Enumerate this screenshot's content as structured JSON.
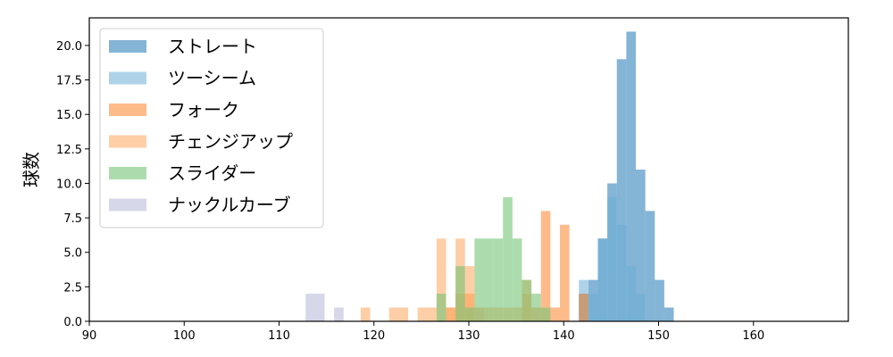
{
  "chart_data": {
    "type": "bar",
    "subtype": "histogram",
    "title": "",
    "xlabel": "",
    "ylabel": "球数",
    "xlim": [
      90,
      170
    ],
    "ylim": [
      0,
      22
    ],
    "xticks": [
      90,
      100,
      110,
      120,
      130,
      140,
      150,
      160
    ],
    "yticks": [
      0.0,
      2.5,
      5.0,
      7.5,
      10.0,
      12.5,
      15.0,
      17.5,
      20.0
    ],
    "ytick_labels": [
      "0.0",
      "2.5",
      "5.0",
      "7.5",
      "10.0",
      "12.5",
      "15.0",
      "17.5",
      "20.0"
    ],
    "grid": false,
    "legend_position": "upper-left",
    "series": [
      {
        "name": "ストレート",
        "color": "#1f77b4",
        "alpha": 0.55,
        "bins": [
          {
            "x0": 141.6,
            "x1": 142.6,
            "count": 2
          },
          {
            "x0": 142.6,
            "x1": 143.6,
            "count": 3
          },
          {
            "x0": 143.6,
            "x1": 144.6,
            "count": 6
          },
          {
            "x0": 144.6,
            "x1": 145.6,
            "count": 10
          },
          {
            "x0": 145.6,
            "x1": 146.6,
            "count": 19
          },
          {
            "x0": 146.6,
            "x1": 147.6,
            "count": 21
          },
          {
            "x0": 147.6,
            "x1": 148.6,
            "count": 11
          },
          {
            "x0": 148.6,
            "x1": 149.6,
            "count": 8
          },
          {
            "x0": 149.6,
            "x1": 150.6,
            "count": 3
          },
          {
            "x0": 150.6,
            "x1": 151.6,
            "count": 1
          }
        ]
      },
      {
        "name": "ツーシーム",
        "color": "#6baed6",
        "alpha": 0.55,
        "bins": [
          {
            "x0": 141.6,
            "x1": 142.6,
            "count": 3
          },
          {
            "x0": 142.6,
            "x1": 143.6,
            "count": 2
          },
          {
            "x0": 143.6,
            "x1": 144.6,
            "count": 6
          },
          {
            "x0": 144.6,
            "x1": 145.6,
            "count": 9
          },
          {
            "x0": 145.6,
            "x1": 146.6,
            "count": 7
          },
          {
            "x0": 146.6,
            "x1": 147.6,
            "count": 4
          },
          {
            "x0": 147.6,
            "x1": 148.6,
            "count": 2
          }
        ]
      },
      {
        "name": "フォーク",
        "color": "#fd8d3c",
        "alpha": 0.6,
        "bins": [
          {
            "x0": 127.6,
            "x1": 128.6,
            "count": 1
          },
          {
            "x0": 128.6,
            "x1": 129.6,
            "count": 2
          },
          {
            "x0": 129.6,
            "x1": 130.6,
            "count": 2
          },
          {
            "x0": 130.6,
            "x1": 131.6,
            "count": 1
          },
          {
            "x0": 135.6,
            "x1": 136.6,
            "count": 2
          },
          {
            "x0": 136.6,
            "x1": 137.6,
            "count": 1
          },
          {
            "x0": 137.6,
            "x1": 138.6,
            "count": 8
          },
          {
            "x0": 138.6,
            "x1": 139.6,
            "count": 1
          },
          {
            "x0": 139.6,
            "x1": 140.6,
            "count": 7
          },
          {
            "x0": 141.6,
            "x1": 142.6,
            "count": 2
          }
        ]
      },
      {
        "name": "チェンジアップ",
        "color": "#fdae6b",
        "alpha": 0.6,
        "bins": [
          {
            "x0": 118.6,
            "x1": 119.6,
            "count": 1
          },
          {
            "x0": 121.6,
            "x1": 122.6,
            "count": 1
          },
          {
            "x0": 122.6,
            "x1": 123.6,
            "count": 1
          },
          {
            "x0": 124.6,
            "x1": 125.6,
            "count": 1
          },
          {
            "x0": 125.6,
            "x1": 126.6,
            "count": 1
          },
          {
            "x0": 126.6,
            "x1": 127.6,
            "count": 6
          },
          {
            "x0": 127.6,
            "x1": 128.6,
            "count": 1
          },
          {
            "x0": 128.6,
            "x1": 129.6,
            "count": 6
          },
          {
            "x0": 129.6,
            "x1": 130.6,
            "count": 4
          },
          {
            "x0": 131.6,
            "x1": 132.6,
            "count": 1
          },
          {
            "x0": 132.6,
            "x1": 133.6,
            "count": 1
          },
          {
            "x0": 133.6,
            "x1": 134.6,
            "count": 1
          },
          {
            "x0": 134.6,
            "x1": 135.6,
            "count": 1
          },
          {
            "x0": 135.6,
            "x1": 136.6,
            "count": 3
          }
        ]
      },
      {
        "name": "スライダー",
        "color": "#74c476",
        "alpha": 0.6,
        "bins": [
          {
            "x0": 126.6,
            "x1": 127.6,
            "count": 2
          },
          {
            "x0": 128.6,
            "x1": 129.6,
            "count": 4
          },
          {
            "x0": 129.6,
            "x1": 130.6,
            "count": 1
          },
          {
            "x0": 130.6,
            "x1": 131.6,
            "count": 6
          },
          {
            "x0": 131.6,
            "x1": 132.6,
            "count": 6
          },
          {
            "x0": 132.6,
            "x1": 133.6,
            "count": 6
          },
          {
            "x0": 133.6,
            "x1": 134.6,
            "count": 9
          },
          {
            "x0": 134.6,
            "x1": 135.6,
            "count": 6
          },
          {
            "x0": 135.6,
            "x1": 136.6,
            "count": 3
          },
          {
            "x0": 136.6,
            "x1": 137.6,
            "count": 2
          },
          {
            "x0": 137.6,
            "x1": 138.6,
            "count": 1
          }
        ]
      },
      {
        "name": "ナックルカーブ",
        "color": "#bcbddc",
        "alpha": 0.6,
        "bins": [
          {
            "x0": 112.8,
            "x1": 114.8,
            "count": 2
          },
          {
            "x0": 115.8,
            "x1": 116.8,
            "count": 1
          }
        ]
      }
    ]
  }
}
